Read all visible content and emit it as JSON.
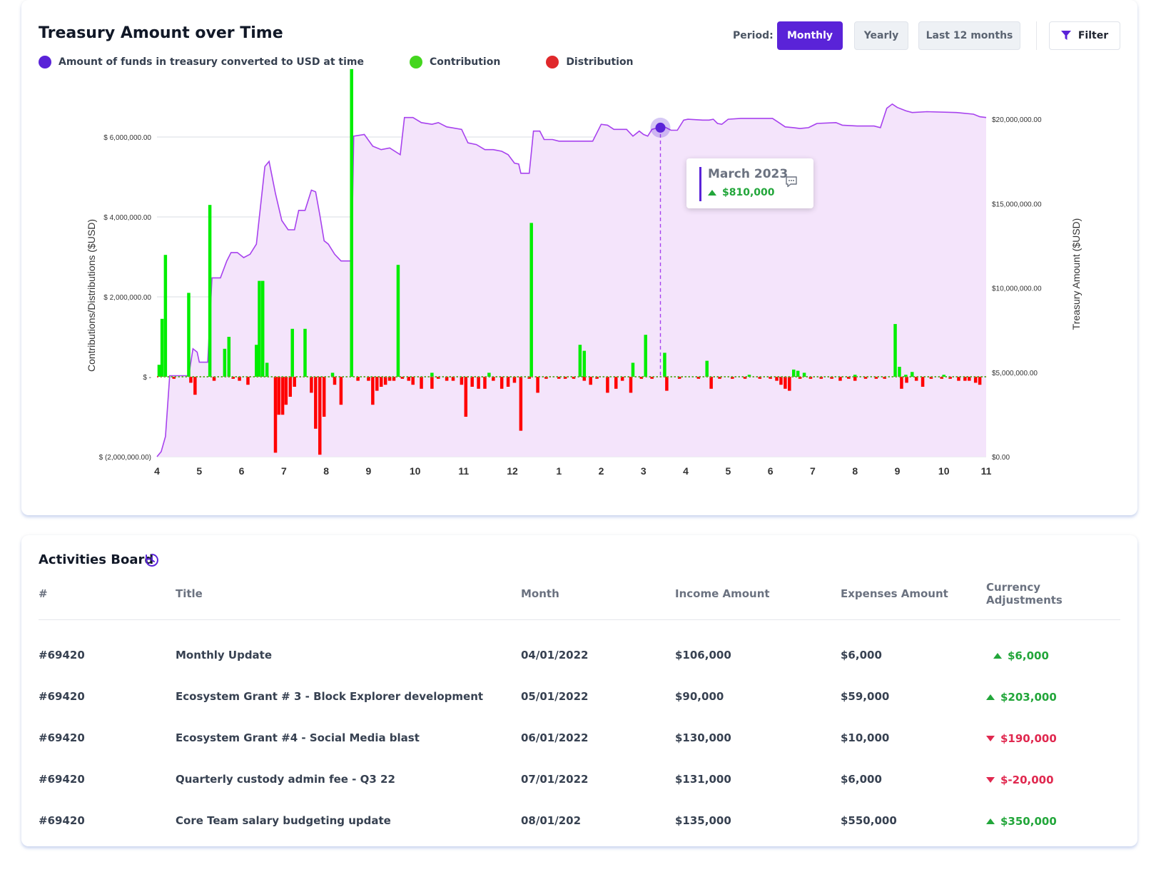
{
  "chart_card": {
    "title": "Treasury Amount over Time",
    "period_label": "Period:",
    "period_options": [
      "Monthly",
      "Yearly",
      "Last 12 months"
    ],
    "active_period": "Monthly",
    "filter_label": "Filter"
  },
  "colors": {
    "accent": "#5a23d8",
    "treasury_line": "#a742ee",
    "treasury_fill": "#f4e4fb",
    "contribution": "#00ee00",
    "distribution": "#ff0000",
    "legend_contribution": "#44d61e",
    "legend_distribution": "#e0282b",
    "positive": "#22a63a",
    "negative": "#e0284f"
  },
  "legend": [
    {
      "label": "Amount of funds in treasury converted to USD at time",
      "color": "#5a23d8"
    },
    {
      "label": "Contribution",
      "color": "#44d61e"
    },
    {
      "label": "Distribution",
      "color": "#e0282b"
    }
  ],
  "tooltip": {
    "month": "March 2023",
    "value": "$810,000",
    "icon": "comment-icon"
  },
  "chart_data": {
    "type": "bar",
    "ylabel": "Contributions/Distributions ($USD)",
    "y2label": "Treasury Amount ($USD)",
    "ylim": [
      -2000000,
      7500000
    ],
    "y2lim": [
      0,
      22500000
    ],
    "yticks": [
      {
        "v": 6000000,
        "label": "$ 6,000,000.00"
      },
      {
        "v": 4000000,
        "label": "$ 4,000,000.00"
      },
      {
        "v": 2000000,
        "label": "$ 2,000,000.00"
      },
      {
        "v": 0,
        "label": "$ -"
      },
      {
        "v": -2000000,
        "label": "$ (2,000,000.00)"
      }
    ],
    "y2ticks": [
      {
        "v": 20000000,
        "label": "$20,000,000.00"
      },
      {
        "v": 15000000,
        "label": "$15,000,000.00"
      },
      {
        "v": 10000000,
        "label": "$10,000,000.00"
      },
      {
        "v": 5000000,
        "label": "$5,000,000.00"
      },
      {
        "v": 0,
        "label": "$0.00"
      }
    ],
    "xlim": [
      0,
      19.6
    ],
    "xticks": [
      {
        "x": 0,
        "label": "4"
      },
      {
        "x": 1,
        "label": "5"
      },
      {
        "x": 2,
        "label": "6"
      },
      {
        "x": 3,
        "label": "7"
      },
      {
        "x": 4,
        "label": "8"
      },
      {
        "x": 5,
        "label": "9"
      },
      {
        "x": 6.1,
        "label": "10"
      },
      {
        "x": 7.25,
        "label": "11"
      },
      {
        "x": 8.4,
        "label": "12"
      },
      {
        "x": 9.5,
        "label": "1"
      },
      {
        "x": 10.5,
        "label": "2"
      },
      {
        "x": 11.5,
        "label": "3"
      },
      {
        "x": 12.5,
        "label": "4"
      },
      {
        "x": 13.5,
        "label": "5"
      },
      {
        "x": 14.5,
        "label": "6"
      },
      {
        "x": 15.5,
        "label": "7"
      },
      {
        "x": 16.5,
        "label": "8"
      },
      {
        "x": 17.5,
        "label": "9"
      },
      {
        "x": 18.6,
        "label": "10"
      },
      {
        "x": 19.6,
        "label": "11"
      }
    ],
    "series": [
      {
        "name": "Amount of funds in treasury converted to USD at time",
        "type": "area",
        "points": [
          [
            0,
            0
          ],
          [
            0.1,
            300000
          ],
          [
            0.2,
            1200000
          ],
          [
            0.3,
            4800000
          ],
          [
            0.75,
            4800000
          ],
          [
            0.85,
            6400000
          ],
          [
            0.95,
            6200000
          ],
          [
            1.0,
            5600000
          ],
          [
            1.2,
            5600000
          ],
          [
            1.3,
            10600000
          ],
          [
            1.5,
            10600000
          ],
          [
            1.65,
            11600000
          ],
          [
            1.75,
            12100000
          ],
          [
            1.9,
            12100000
          ],
          [
            2.05,
            11800000
          ],
          [
            2.2,
            12000000
          ],
          [
            2.35,
            12600000
          ],
          [
            2.55,
            17200000
          ],
          [
            2.65,
            17500000
          ],
          [
            2.8,
            15600000
          ],
          [
            2.95,
            14000000
          ],
          [
            3.1,
            13450000
          ],
          [
            3.25,
            13450000
          ],
          [
            3.35,
            14600000
          ],
          [
            3.5,
            14600000
          ],
          [
            3.65,
            15800000
          ],
          [
            3.75,
            15700000
          ],
          [
            3.85,
            14300000
          ],
          [
            3.95,
            12800000
          ],
          [
            4.05,
            12600000
          ],
          [
            4.2,
            12000000
          ],
          [
            4.35,
            11600000
          ],
          [
            4.6,
            11600000
          ],
          [
            4.65,
            19000000
          ],
          [
            4.9,
            19100000
          ],
          [
            5.1,
            18400000
          ],
          [
            5.3,
            18200000
          ],
          [
            5.5,
            18300000
          ],
          [
            5.75,
            17900000
          ],
          [
            5.85,
            20100000
          ],
          [
            6.05,
            20100000
          ],
          [
            6.25,
            19800000
          ],
          [
            6.5,
            19700000
          ],
          [
            6.65,
            19800000
          ],
          [
            6.85,
            19550000
          ],
          [
            7.2,
            19400000
          ],
          [
            7.35,
            18600000
          ],
          [
            7.55,
            18500000
          ],
          [
            7.75,
            18200000
          ],
          [
            7.95,
            18200000
          ],
          [
            8.15,
            18100000
          ],
          [
            8.3,
            17900000
          ],
          [
            8.45,
            17400000
          ],
          [
            8.55,
            17350000
          ],
          [
            8.6,
            16800000
          ],
          [
            8.8,
            16800000
          ],
          [
            8.9,
            19300000
          ],
          [
            9.05,
            19300000
          ],
          [
            9.15,
            18800000
          ],
          [
            9.35,
            18800000
          ],
          [
            9.5,
            18700000
          ],
          [
            10.3,
            18700000
          ],
          [
            10.5,
            19700000
          ],
          [
            10.65,
            19650000
          ],
          [
            10.8,
            19400000
          ],
          [
            11.1,
            19400000
          ],
          [
            11.25,
            19000000
          ],
          [
            11.4,
            19300000
          ],
          [
            11.5,
            19100000
          ],
          [
            11.6,
            19000000
          ],
          [
            11.7,
            19400000
          ],
          [
            11.85,
            19500000
          ],
          [
            12.0,
            19550000
          ],
          [
            12.15,
            19350000
          ],
          [
            12.3,
            19350000
          ],
          [
            12.45,
            19950000
          ],
          [
            12.55,
            20000000
          ],
          [
            12.9,
            19950000
          ],
          [
            13.05,
            19950000
          ],
          [
            13.15,
            20000000
          ],
          [
            13.25,
            19750000
          ],
          [
            13.35,
            19700000
          ],
          [
            13.5,
            20000000
          ],
          [
            13.8,
            20050000
          ],
          [
            14.3,
            20050000
          ],
          [
            14.55,
            20050000
          ],
          [
            14.7,
            19800000
          ],
          [
            14.85,
            19550000
          ],
          [
            15.05,
            19500000
          ],
          [
            15.2,
            19450000
          ],
          [
            15.4,
            19500000
          ],
          [
            15.6,
            19750000
          ],
          [
            16.05,
            19800000
          ],
          [
            16.2,
            19650000
          ],
          [
            16.55,
            19600000
          ],
          [
            16.95,
            19600000
          ],
          [
            17.1,
            19500000
          ],
          [
            17.25,
            20650000
          ],
          [
            17.38,
            20900000
          ],
          [
            17.5,
            20700000
          ],
          [
            17.7,
            20500000
          ],
          [
            17.85,
            20400000
          ],
          [
            18.2,
            20450000
          ],
          [
            18.9,
            20400000
          ],
          [
            19.3,
            20300000
          ],
          [
            19.45,
            20150000
          ],
          [
            19.6,
            20100000
          ]
        ]
      },
      {
        "name": "Contribution",
        "type": "bar",
        "bars": [
          [
            0.05,
            300000
          ],
          [
            0.12,
            1450000
          ],
          [
            0.2,
            3050000
          ],
          [
            0.75,
            2100000
          ],
          [
            1.25,
            4300000
          ],
          [
            1.6,
            700000
          ],
          [
            1.7,
            1000000
          ],
          [
            2.35,
            800000
          ],
          [
            2.42,
            2400000
          ],
          [
            2.5,
            2400000
          ],
          [
            2.6,
            350000
          ],
          [
            3.2,
            1200000
          ],
          [
            3.5,
            1200000
          ],
          [
            4.15,
            100000
          ],
          [
            4.6,
            7700000
          ],
          [
            5.7,
            2800000
          ],
          [
            6.5,
            100000
          ],
          [
            7.85,
            100000
          ],
          [
            8.85,
            3850000
          ],
          [
            10.0,
            800000
          ],
          [
            10.1,
            650000
          ],
          [
            11.25,
            350000
          ],
          [
            11.55,
            1050000
          ],
          [
            12.0,
            600000
          ],
          [
            13.0,
            400000
          ],
          [
            14.0,
            50000
          ],
          [
            15.05,
            180000
          ],
          [
            15.15,
            150000
          ],
          [
            15.3,
            100000
          ],
          [
            16.5,
            50000
          ],
          [
            17.45,
            1320000
          ],
          [
            17.55,
            250000
          ],
          [
            17.7,
            50000
          ],
          [
            17.85,
            120000
          ],
          [
            18.6,
            50000
          ]
        ]
      },
      {
        "name": "Distribution",
        "type": "bar",
        "bars": [
          [
            0.4,
            -50000
          ],
          [
            0.8,
            -150000
          ],
          [
            0.9,
            -450000
          ],
          [
            1.35,
            -100000
          ],
          [
            1.8,
            -50000
          ],
          [
            1.95,
            -100000
          ],
          [
            2.15,
            -200000
          ],
          [
            2.8,
            -1900000
          ],
          [
            2.88,
            -950000
          ],
          [
            2.97,
            -950000
          ],
          [
            3.05,
            -700000
          ],
          [
            3.15,
            -500000
          ],
          [
            3.25,
            -250000
          ],
          [
            3.65,
            -400000
          ],
          [
            3.75,
            -1300000
          ],
          [
            3.85,
            -1950000
          ],
          [
            3.95,
            -1000000
          ],
          [
            4.2,
            -200000
          ],
          [
            4.35,
            -700000
          ],
          [
            4.75,
            -100000
          ],
          [
            5.0,
            -100000
          ],
          [
            5.1,
            -700000
          ],
          [
            5.2,
            -350000
          ],
          [
            5.3,
            -250000
          ],
          [
            5.4,
            -200000
          ],
          [
            5.5,
            -100000
          ],
          [
            5.6,
            -100000
          ],
          [
            5.8,
            -50000
          ],
          [
            5.95,
            -100000
          ],
          [
            6.05,
            -200000
          ],
          [
            6.25,
            -300000
          ],
          [
            6.5,
            -300000
          ],
          [
            6.65,
            -50000
          ],
          [
            6.85,
            -100000
          ],
          [
            7.0,
            -100000
          ],
          [
            7.2,
            -200000
          ],
          [
            7.3,
            -1000000
          ],
          [
            7.45,
            -250000
          ],
          [
            7.6,
            -300000
          ],
          [
            7.75,
            -300000
          ],
          [
            7.95,
            -100000
          ],
          [
            8.15,
            -300000
          ],
          [
            8.3,
            -250000
          ],
          [
            8.45,
            -150000
          ],
          [
            8.6,
            -1350000
          ],
          [
            8.8,
            -50000
          ],
          [
            9.0,
            -400000
          ],
          [
            9.2,
            -50000
          ],
          [
            9.5,
            -50000
          ],
          [
            9.65,
            -50000
          ],
          [
            9.85,
            -50000
          ],
          [
            10.1,
            -100000
          ],
          [
            10.25,
            -200000
          ],
          [
            10.4,
            -50000
          ],
          [
            10.65,
            -400000
          ],
          [
            10.85,
            -300000
          ],
          [
            11.0,
            -100000
          ],
          [
            11.2,
            -400000
          ],
          [
            11.45,
            -50000
          ],
          [
            11.7,
            -50000
          ],
          [
            12.05,
            -350000
          ],
          [
            12.35,
            -50000
          ],
          [
            12.8,
            -50000
          ],
          [
            13.1,
            -300000
          ],
          [
            13.3,
            -50000
          ],
          [
            13.6,
            -50000
          ],
          [
            13.9,
            -50000
          ],
          [
            14.25,
            -50000
          ],
          [
            14.5,
            -50000
          ],
          [
            14.65,
            -100000
          ],
          [
            14.75,
            -200000
          ],
          [
            14.85,
            -300000
          ],
          [
            14.95,
            -350000
          ],
          [
            15.2,
            -50000
          ],
          [
            15.45,
            -50000
          ],
          [
            15.7,
            -50000
          ],
          [
            15.95,
            -50000
          ],
          [
            16.15,
            -100000
          ],
          [
            16.35,
            -50000
          ],
          [
            16.5,
            -100000
          ],
          [
            16.75,
            -50000
          ],
          [
            17.0,
            -50000
          ],
          [
            17.2,
            -50000
          ],
          [
            17.6,
            -300000
          ],
          [
            17.72,
            -150000
          ],
          [
            17.95,
            -100000
          ],
          [
            18.1,
            -250000
          ],
          [
            18.3,
            -50000
          ],
          [
            18.55,
            -50000
          ],
          [
            18.75,
            -50000
          ],
          [
            18.95,
            -100000
          ],
          [
            19.1,
            -100000
          ],
          [
            19.2,
            -100000
          ],
          [
            19.35,
            -150000
          ],
          [
            19.45,
            -200000
          ]
        ]
      }
    ],
    "hover": {
      "x": 11.9,
      "value": 19500000
    }
  },
  "activities": {
    "title": "Activities Board",
    "icon": "clock-refresh-icon",
    "columns": [
      "#",
      "Title",
      "Month",
      "Income Amount",
      "Expenses Amount",
      "Currency Adjustments"
    ],
    "rows": [
      {
        "id": "#69420",
        "title": "Monthly Update",
        "month": "04/01/2022",
        "income": "$106,000",
        "expenses": "$6,000",
        "adjustment": "$6,000",
        "direction": "up"
      },
      {
        "id": "#69420",
        "title": "Ecosystem Grant # 3 - Block Explorer development",
        "month": "05/01/2022",
        "income": "$90,000",
        "expenses": "$59,000",
        "adjustment": "$203,000",
        "direction": "up"
      },
      {
        "id": "#69420",
        "title": "Ecosystem Grant #4 - Social Media blast",
        "month": "06/01/2022",
        "income": "$130,000",
        "expenses": "$10,000",
        "adjustment": "$190,000",
        "direction": "down"
      },
      {
        "id": "#69420",
        "title": "Quarterly custody admin fee - Q3 22",
        "month": "07/01/2022",
        "income": "$131,000",
        "expenses": "$6,000",
        "adjustment": "$-20,000",
        "direction": "down"
      },
      {
        "id": "#69420",
        "title": "Core Team salary budgeting update",
        "month": "08/01/202",
        "income": "$135,000",
        "expenses": "$550,000",
        "adjustment": "$350,000",
        "direction": "up"
      }
    ]
  }
}
